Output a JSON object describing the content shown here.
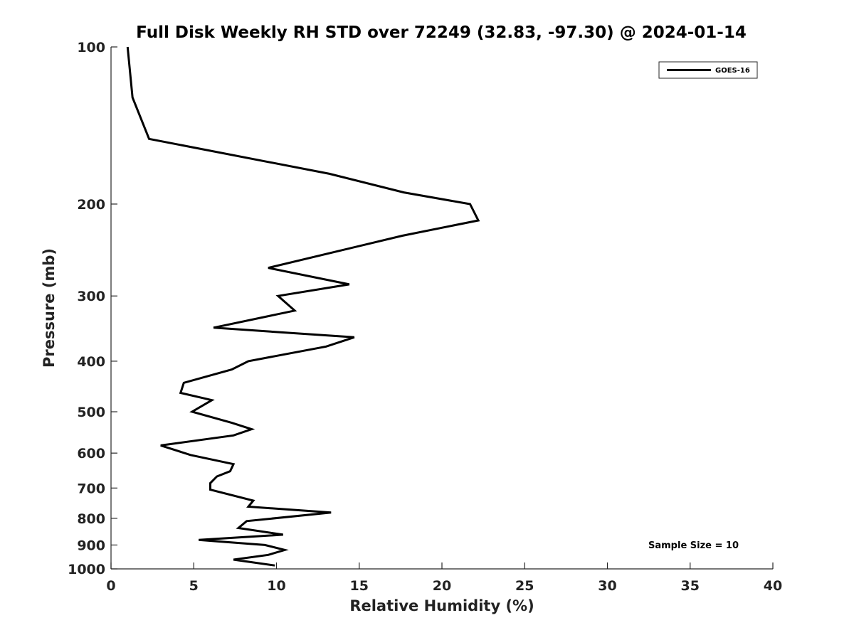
{
  "chart_data": {
    "type": "line",
    "title": "Full Disk Weekly RH STD over 72249 (32.83, -97.30) @ 2024-01-14",
    "xlabel": "Relative Humidity (%)",
    "ylabel": "Pressure (mb)",
    "xlim": [
      0,
      40
    ],
    "ylim": [
      100,
      1000
    ],
    "y_scale": "log",
    "y_reversed": true,
    "x_ticks": [
      0,
      5,
      10,
      15,
      20,
      25,
      30,
      35,
      40
    ],
    "y_ticks": [
      100,
      200,
      300,
      400,
      500,
      600,
      700,
      800,
      900,
      1000
    ],
    "grid": false,
    "legend_position": "top-right",
    "series": [
      {
        "name": "GOES-16",
        "color": "#000000",
        "points": [
          [
            1.0,
            100
          ],
          [
            1.3,
            125
          ],
          [
            2.3,
            150
          ],
          [
            13.2,
            175
          ],
          [
            17.7,
            190
          ],
          [
            21.7,
            200
          ],
          [
            22.2,
            215
          ],
          [
            17.6,
            230
          ],
          [
            9.5,
            265
          ],
          [
            14.4,
            285
          ],
          [
            10.1,
            300
          ],
          [
            11.1,
            320
          ],
          [
            6.2,
            345
          ],
          [
            14.7,
            360
          ],
          [
            13.0,
            375
          ],
          [
            8.3,
            400
          ],
          [
            7.3,
            415
          ],
          [
            4.4,
            440
          ],
          [
            4.2,
            460
          ],
          [
            6.1,
            475
          ],
          [
            4.9,
            500
          ],
          [
            7.3,
            525
          ],
          [
            8.5,
            540
          ],
          [
            7.4,
            555
          ],
          [
            3.0,
            580
          ],
          [
            4.8,
            605
          ],
          [
            7.4,
            630
          ],
          [
            7.2,
            650
          ],
          [
            6.4,
            665
          ],
          [
            6.0,
            685
          ],
          [
            6.0,
            705
          ],
          [
            8.6,
            740
          ],
          [
            8.3,
            760
          ],
          [
            13.3,
            780
          ],
          [
            8.2,
            810
          ],
          [
            7.7,
            835
          ],
          [
            10.4,
            860
          ],
          [
            5.3,
            880
          ],
          [
            9.3,
            900
          ],
          [
            10.5,
            920
          ],
          [
            9.5,
            940
          ],
          [
            7.4,
            960
          ],
          [
            9.9,
            985
          ]
        ]
      }
    ],
    "annotations": [
      "Sample Size = 10"
    ]
  }
}
